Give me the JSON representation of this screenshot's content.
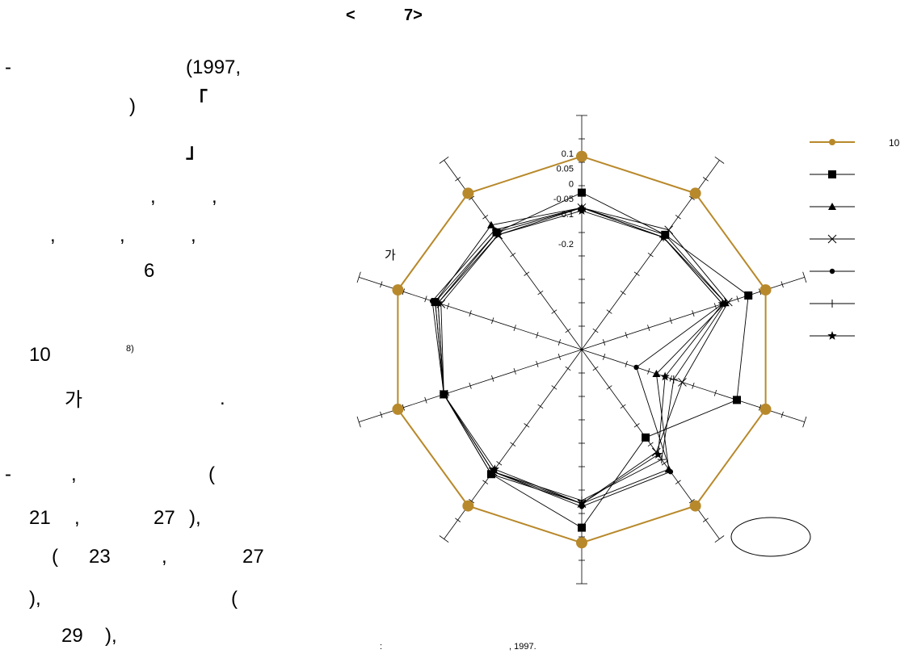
{
  "page": {
    "heading_left": "<",
    "heading_right": "7>",
    "text_lines": [
      {
        "id": "l1",
        "text": "-"
      },
      {
        "id": "l2",
        "text": "(1997,"
      },
      {
        "id": "l3",
        "text": ")"
      },
      {
        "id": "l4",
        "text": "「"
      },
      {
        "id": "l5",
        "text": "」"
      },
      {
        "id": "l6",
        "text": ","
      },
      {
        "id": "l7",
        "text": ","
      },
      {
        "id": "l8",
        "text": ","
      },
      {
        "id": "l9",
        "text": ","
      },
      {
        "id": "l10",
        "text": ","
      },
      {
        "id": "l11",
        "text": "6"
      },
      {
        "id": "l12",
        "text": "10"
      },
      {
        "id": "l13",
        "text": "8)"
      },
      {
        "id": "l14",
        "text": "가"
      },
      {
        "id": "l15",
        "text": "."
      },
      {
        "id": "l16",
        "text": "-"
      },
      {
        "id": "l17",
        "text": ","
      },
      {
        "id": "l18",
        "text": "("
      },
      {
        "id": "l19",
        "text": "21"
      },
      {
        "id": "l20",
        "text": ","
      },
      {
        "id": "l21",
        "text": "27"
      },
      {
        "id": "l22",
        "text": "),"
      },
      {
        "id": "l23",
        "text": "("
      },
      {
        "id": "l24",
        "text": "23"
      },
      {
        "id": "l25",
        "text": ","
      },
      {
        "id": "l26",
        "text": "27"
      },
      {
        "id": "l27",
        "text": "),"
      },
      {
        "id": "l28",
        "text": "("
      },
      {
        "id": "l29",
        "text": "29"
      },
      {
        "id": "l30",
        "text": "),"
      }
    ],
    "source_colon": ":",
    "source_year": ", 1997."
  },
  "chart_data": {
    "type": "radar",
    "axis_count": 10,
    "ticks": [
      "0.1",
      "0.05",
      "0",
      "-0.05",
      "-0.1",
      "-0.2"
    ],
    "tick_values": [
      0.1,
      0.05,
      0,
      -0.05,
      -0.1,
      -0.2
    ],
    "axis_label": "가",
    "legend_position": "right",
    "series": [
      {
        "name": "10",
        "marker": "circle-large",
        "color": "#b8892b",
        "values": [
          0.09,
          0.09,
          0.09,
          0.09,
          0.09,
          0.09,
          0.09,
          0.09,
          0.09,
          0.09
        ]
      },
      {
        "marker": "square",
        "color": "#000000",
        "values": [
          -0.03,
          -0.08,
          0.03,
          -0.01,
          -0.19,
          0.04,
          -0.04,
          -0.07,
          -0.04,
          -0.07
        ]
      },
      {
        "marker": "triangle",
        "color": "#000000",
        "values": [
          -0.08,
          -0.08,
          -0.05,
          -0.29,
          -0.06,
          -0.04,
          -0.04,
          -0.07,
          -0.04,
          -0.04
        ]
      },
      {
        "marker": "x",
        "color": "#000000",
        "values": [
          -0.08,
          -0.06,
          -0.04,
          -0.2,
          -0.13,
          -0.04,
          -0.05,
          -0.07,
          -0.06,
          -0.08
        ]
      },
      {
        "marker": "dot",
        "color": "#000000",
        "values": [
          -0.08,
          -0.09,
          -0.06,
          -0.36,
          -0.05,
          -0.03,
          -0.05,
          -0.07,
          -0.03,
          -0.06
        ]
      },
      {
        "marker": "plus",
        "color": "#000000",
        "values": [
          -0.08,
          -0.09,
          -0.05,
          -0.23,
          -0.1,
          -0.05,
          -0.05,
          -0.07,
          -0.05,
          -0.07
        ]
      },
      {
        "marker": "star",
        "color": "#000000",
        "values": [
          -0.09,
          -0.09,
          -0.06,
          -0.26,
          -0.12,
          -0.04,
          -0.06,
          -0.07,
          -0.05,
          -0.08
        ]
      }
    ]
  }
}
